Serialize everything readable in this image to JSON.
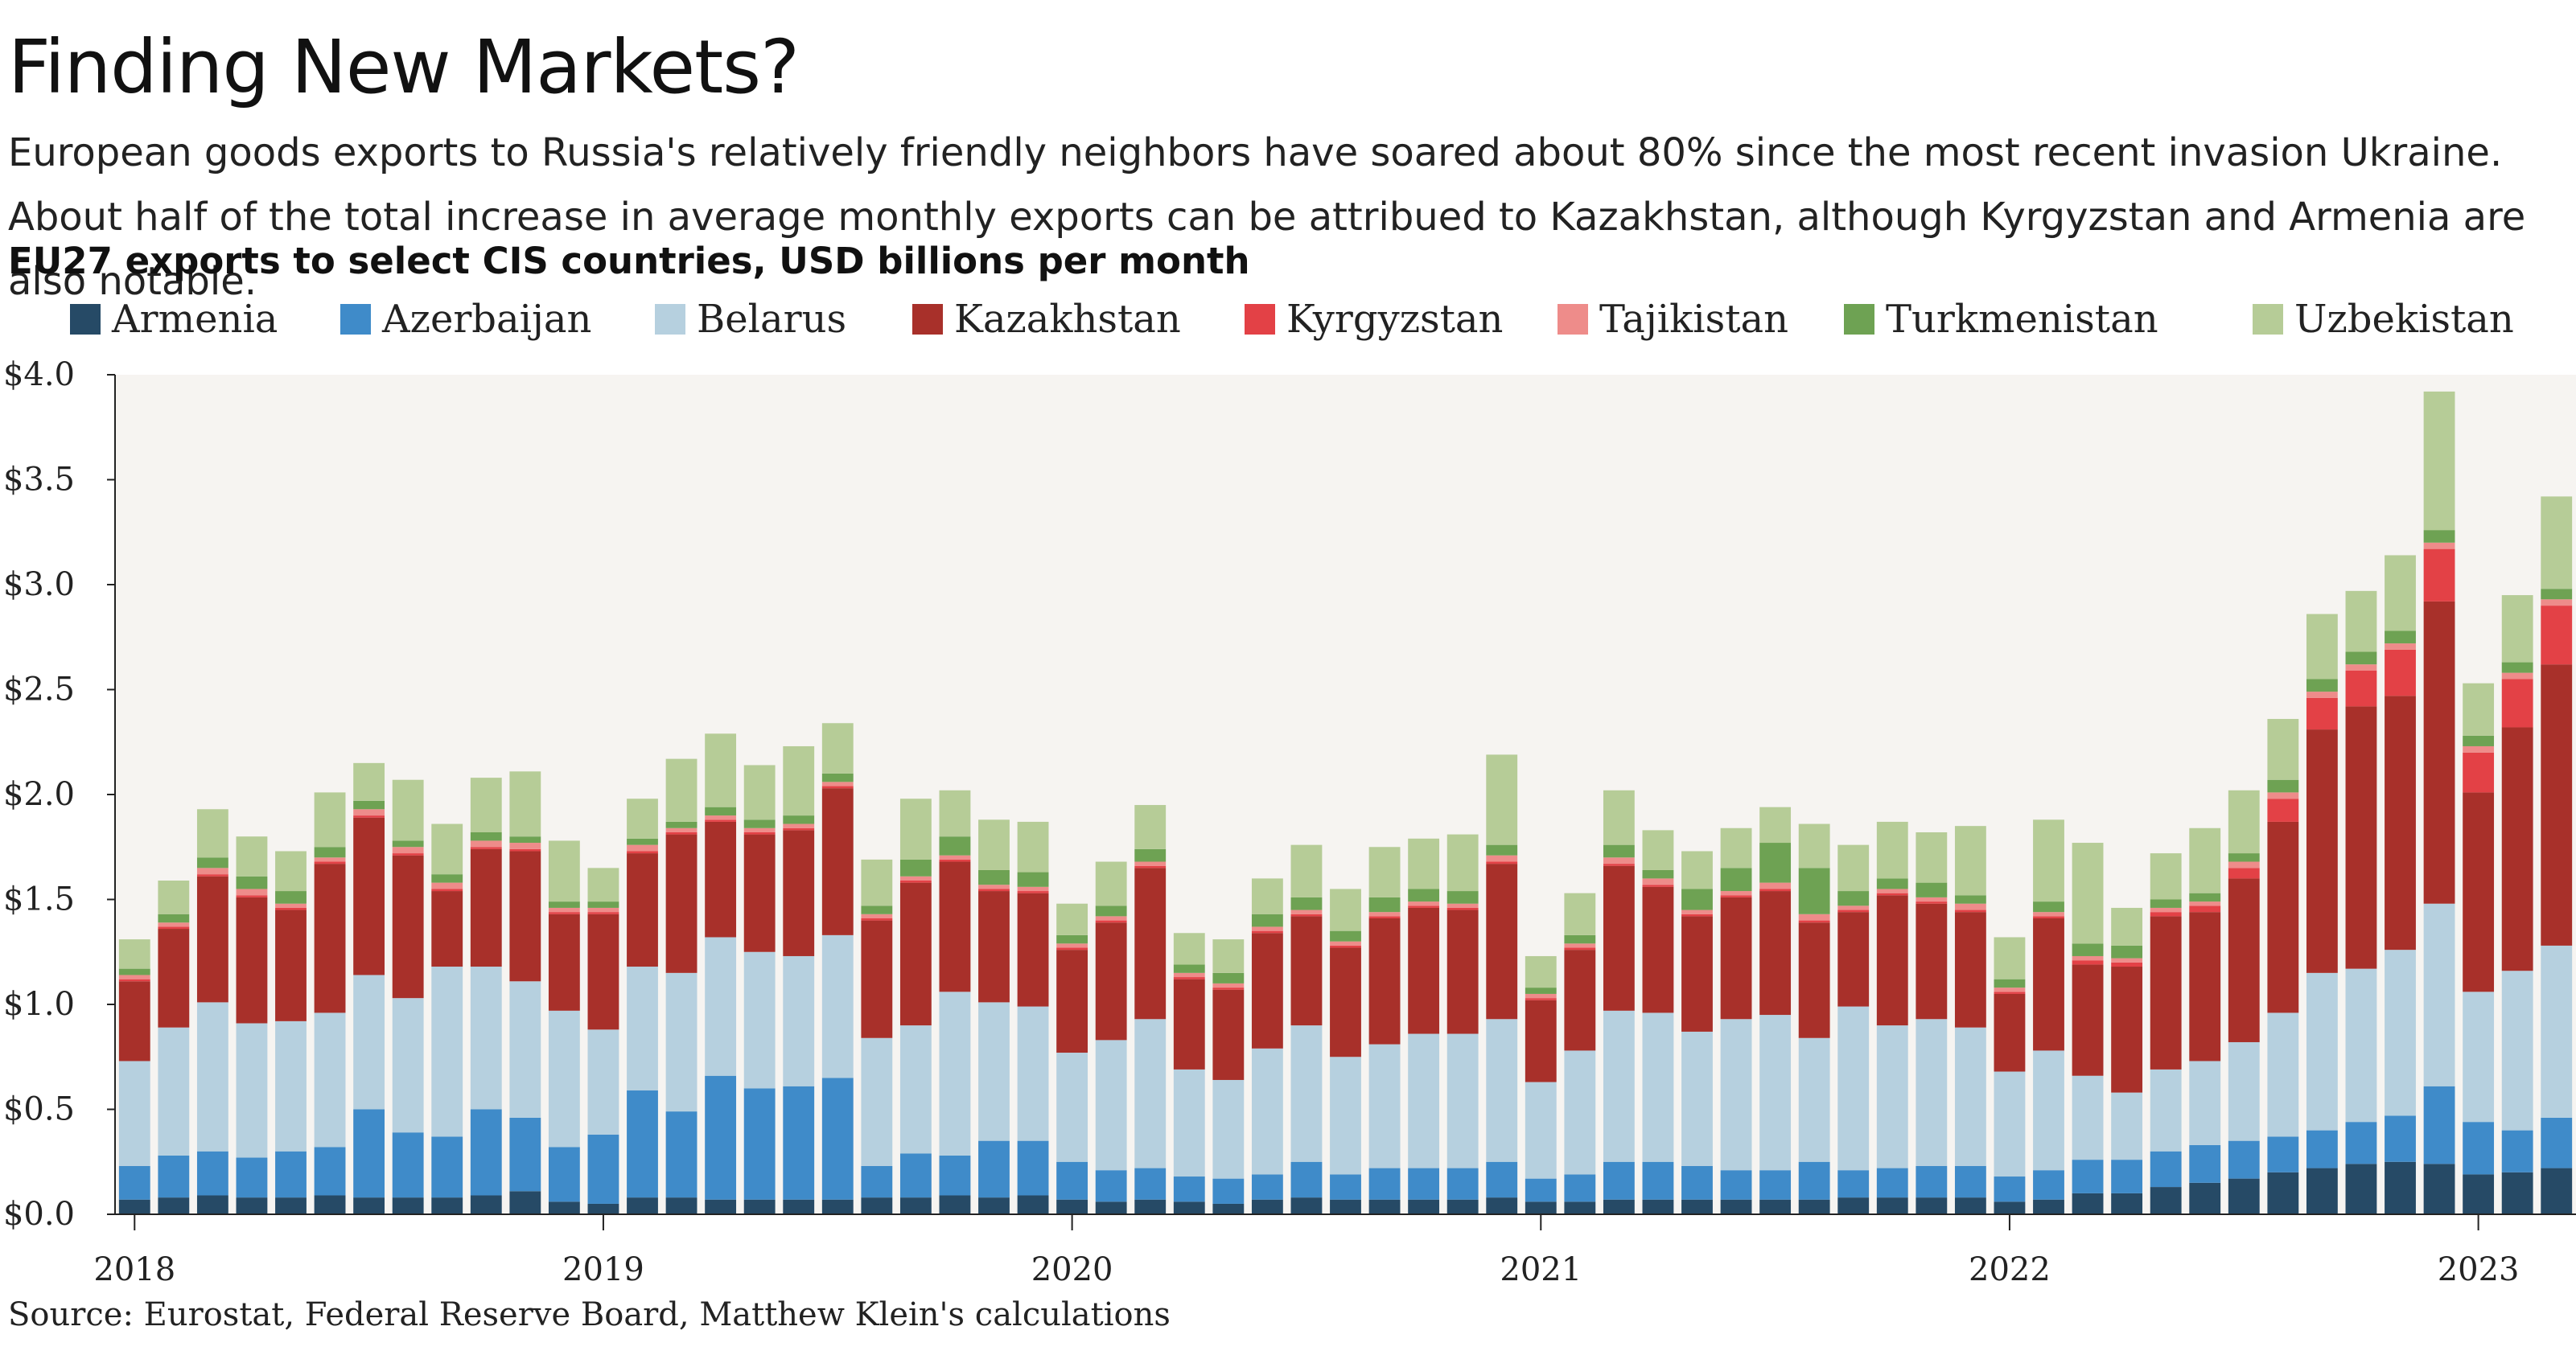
{
  "title": "Finding New Markets?",
  "subtitle": "European goods exports to Russia's relatively friendly neighbors have soared about 80% since the most recent invasion Ukraine. About half of the total increase in average monthly exports can be attribued to Kazakhstan, although Kyrgyzstan and Armenia are also notable.",
  "chart_heading": "EU27 exports to select CIS countries, USD billions per month",
  "source": "Source: Eurostat, Federal Reserve Board, Matthew Klein's calculations",
  "colors": {
    "plot_background": "#f6f4f1",
    "Armenia": "#264a66",
    "Azerbaijan": "#3f8bc9",
    "Belarus": "#b6d0df",
    "Kazakhstan": "#a8302a",
    "Kyrgyzstan": "#e34146",
    "Tajikistan": "#ee8c8a",
    "Turkmenistan": "#6ea253",
    "Uzbekistan": "#b6cc97"
  },
  "chart_data": {
    "type": "bar",
    "stacked": true,
    "title": "EU27 exports to select CIS countries, USD billions per month",
    "ylabel": "",
    "xlabel": "",
    "ylim": [
      0,
      4.0
    ],
    "yticks": [
      0.0,
      0.5,
      1.0,
      1.5,
      2.0,
      2.5,
      3.0,
      3.5,
      4.0
    ],
    "ytick_labels": [
      "$0.0",
      "$0.5",
      "$1.0",
      "$1.5",
      "$2.0",
      "$2.5",
      "$3.0",
      "$3.5",
      "$4.0"
    ],
    "xtick_labels": [
      {
        "label": "2018",
        "index": 0
      },
      {
        "label": "2019",
        "index": 12
      },
      {
        "label": "2020",
        "index": 24
      },
      {
        "label": "2021",
        "index": 36
      },
      {
        "label": "2022",
        "index": 48
      },
      {
        "label": "2023",
        "index": 60
      }
    ],
    "legend_position": "top",
    "categories": [
      "2018-01",
      "2018-02",
      "2018-03",
      "2018-04",
      "2018-05",
      "2018-06",
      "2018-07",
      "2018-08",
      "2018-09",
      "2018-10",
      "2018-11",
      "2018-12",
      "2019-01",
      "2019-02",
      "2019-03",
      "2019-04",
      "2019-05",
      "2019-06",
      "2019-07",
      "2019-08",
      "2019-09",
      "2019-10",
      "2019-11",
      "2019-12",
      "2020-01",
      "2020-02",
      "2020-03",
      "2020-04",
      "2020-05",
      "2020-06",
      "2020-07",
      "2020-08",
      "2020-09",
      "2020-10",
      "2020-11",
      "2020-12",
      "2021-01",
      "2021-02",
      "2021-03",
      "2021-04",
      "2021-05",
      "2021-06",
      "2021-07",
      "2021-08",
      "2021-09",
      "2021-10",
      "2021-11",
      "2021-12",
      "2022-01",
      "2022-02",
      "2022-03",
      "2022-04",
      "2022-05",
      "2022-06",
      "2022-07",
      "2022-08",
      "2022-09",
      "2022-10",
      "2022-11",
      "2022-12",
      "2023-01",
      "2023-02",
      "2023-03"
    ],
    "series": [
      {
        "name": "Armenia",
        "values": [
          0.07,
          0.08,
          0.09,
          0.08,
          0.08,
          0.09,
          0.08,
          0.08,
          0.08,
          0.09,
          0.11,
          0.06,
          0.05,
          0.08,
          0.08,
          0.07,
          0.07,
          0.07,
          0.07,
          0.08,
          0.08,
          0.09,
          0.08,
          0.09,
          0.07,
          0.06,
          0.07,
          0.06,
          0.05,
          0.07,
          0.08,
          0.07,
          0.07,
          0.07,
          0.07,
          0.08,
          0.06,
          0.06,
          0.07,
          0.07,
          0.07,
          0.07,
          0.07,
          0.07,
          0.08,
          0.08,
          0.08,
          0.08,
          0.06,
          0.07,
          0.1,
          0.1,
          0.13,
          0.15,
          0.17,
          0.2,
          0.22,
          0.24,
          0.25,
          0.24,
          0.19,
          0.2,
          0.22
        ]
      },
      {
        "name": "Azerbaijan",
        "values": [
          0.16,
          0.2,
          0.21,
          0.19,
          0.22,
          0.23,
          0.42,
          0.31,
          0.29,
          0.41,
          0.35,
          0.26,
          0.33,
          0.51,
          0.41,
          0.59,
          0.53,
          0.54,
          0.58,
          0.15,
          0.21,
          0.19,
          0.27,
          0.26,
          0.18,
          0.15,
          0.15,
          0.12,
          0.12,
          0.12,
          0.17,
          0.12,
          0.15,
          0.15,
          0.15,
          0.17,
          0.11,
          0.13,
          0.18,
          0.18,
          0.16,
          0.14,
          0.14,
          0.18,
          0.13,
          0.14,
          0.15,
          0.15,
          0.12,
          0.14,
          0.16,
          0.16,
          0.17,
          0.18,
          0.18,
          0.17,
          0.18,
          0.2,
          0.22,
          0.37,
          0.25,
          0.2,
          0.24
        ]
      },
      {
        "name": "Belarus",
        "values": [
          0.5,
          0.61,
          0.71,
          0.64,
          0.62,
          0.64,
          0.64,
          0.64,
          0.81,
          0.68,
          0.65,
          0.65,
          0.5,
          0.59,
          0.66,
          0.66,
          0.65,
          0.62,
          0.68,
          0.61,
          0.61,
          0.78,
          0.66,
          0.64,
          0.52,
          0.62,
          0.71,
          0.51,
          0.47,
          0.6,
          0.65,
          0.56,
          0.59,
          0.64,
          0.64,
          0.68,
          0.46,
          0.59,
          0.72,
          0.71,
          0.64,
          0.72,
          0.74,
          0.59,
          0.78,
          0.68,
          0.7,
          0.66,
          0.5,
          0.57,
          0.4,
          0.32,
          0.39,
          0.4,
          0.47,
          0.59,
          0.75,
          0.73,
          0.79,
          0.87,
          0.62,
          0.76,
          0.82
        ]
      },
      {
        "name": "Kazakhstan",
        "values": [
          0.38,
          0.47,
          0.6,
          0.6,
          0.53,
          0.71,
          0.75,
          0.68,
          0.36,
          0.56,
          0.62,
          0.46,
          0.55,
          0.54,
          0.66,
          0.55,
          0.56,
          0.6,
          0.7,
          0.56,
          0.68,
          0.62,
          0.53,
          0.54,
          0.49,
          0.56,
          0.72,
          0.43,
          0.43,
          0.55,
          0.52,
          0.52,
          0.6,
          0.6,
          0.59,
          0.74,
          0.39,
          0.48,
          0.69,
          0.6,
          0.55,
          0.58,
          0.59,
          0.55,
          0.45,
          0.62,
          0.55,
          0.55,
          0.37,
          0.63,
          0.53,
          0.6,
          0.73,
          0.71,
          0.78,
          0.91,
          1.16,
          1.25,
          1.21,
          1.44,
          0.95,
          1.16,
          1.34
        ]
      },
      {
        "name": "Kyrgyzstan",
        "values": [
          0.01,
          0.01,
          0.01,
          0.01,
          0.01,
          0.01,
          0.01,
          0.01,
          0.01,
          0.01,
          0.01,
          0.01,
          0.01,
          0.01,
          0.01,
          0.01,
          0.01,
          0.01,
          0.01,
          0.01,
          0.01,
          0.01,
          0.01,
          0.01,
          0.01,
          0.01,
          0.01,
          0.01,
          0.01,
          0.01,
          0.01,
          0.01,
          0.01,
          0.01,
          0.01,
          0.01,
          0.01,
          0.01,
          0.01,
          0.01,
          0.01,
          0.01,
          0.01,
          0.01,
          0.01,
          0.01,
          0.01,
          0.01,
          0.01,
          0.01,
          0.02,
          0.02,
          0.02,
          0.03,
          0.05,
          0.11,
          0.15,
          0.17,
          0.22,
          0.25,
          0.19,
          0.23,
          0.28
        ]
      },
      {
        "name": "Tajikistan",
        "values": [
          0.02,
          0.02,
          0.03,
          0.03,
          0.02,
          0.02,
          0.03,
          0.03,
          0.03,
          0.03,
          0.03,
          0.02,
          0.02,
          0.03,
          0.02,
          0.02,
          0.02,
          0.02,
          0.02,
          0.02,
          0.02,
          0.02,
          0.02,
          0.02,
          0.02,
          0.02,
          0.02,
          0.02,
          0.02,
          0.02,
          0.02,
          0.02,
          0.02,
          0.02,
          0.02,
          0.03,
          0.02,
          0.02,
          0.03,
          0.03,
          0.02,
          0.02,
          0.03,
          0.03,
          0.02,
          0.02,
          0.02,
          0.03,
          0.02,
          0.02,
          0.02,
          0.02,
          0.02,
          0.02,
          0.03,
          0.03,
          0.03,
          0.03,
          0.03,
          0.03,
          0.03,
          0.03,
          0.03
        ]
      },
      {
        "name": "Turkmenistan",
        "values": [
          0.03,
          0.04,
          0.05,
          0.06,
          0.06,
          0.05,
          0.04,
          0.03,
          0.04,
          0.04,
          0.03,
          0.03,
          0.03,
          0.03,
          0.03,
          0.04,
          0.04,
          0.04,
          0.04,
          0.04,
          0.08,
          0.09,
          0.07,
          0.07,
          0.04,
          0.05,
          0.06,
          0.04,
          0.05,
          0.06,
          0.06,
          0.05,
          0.07,
          0.06,
          0.06,
          0.05,
          0.03,
          0.04,
          0.06,
          0.04,
          0.1,
          0.11,
          0.19,
          0.22,
          0.07,
          0.05,
          0.07,
          0.04,
          0.04,
          0.05,
          0.06,
          0.06,
          0.04,
          0.04,
          0.04,
          0.06,
          0.06,
          0.06,
          0.06,
          0.06,
          0.05,
          0.05,
          0.05
        ]
      },
      {
        "name": "Uzbekistan",
        "values": [
          0.14,
          0.16,
          0.23,
          0.19,
          0.19,
          0.26,
          0.18,
          0.29,
          0.24,
          0.26,
          0.31,
          0.29,
          0.16,
          0.19,
          0.3,
          0.35,
          0.26,
          0.33,
          0.24,
          0.22,
          0.29,
          0.22,
          0.24,
          0.24,
          0.15,
          0.21,
          0.21,
          0.15,
          0.16,
          0.17,
          0.25,
          0.2,
          0.24,
          0.24,
          0.27,
          0.43,
          0.15,
          0.2,
          0.26,
          0.19,
          0.18,
          0.19,
          0.17,
          0.21,
          0.22,
          0.27,
          0.24,
          0.33,
          0.2,
          0.39,
          0.48,
          0.18,
          0.22,
          0.31,
          0.3,
          0.29,
          0.31,
          0.29,
          0.36,
          0.66,
          0.25,
          0.32,
          0.44
        ]
      }
    ]
  }
}
